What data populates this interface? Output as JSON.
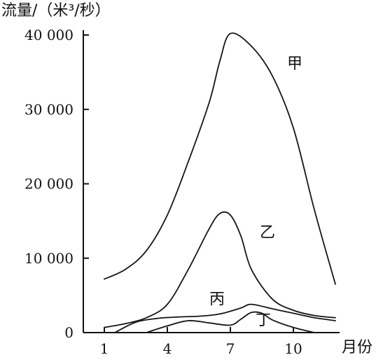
{
  "chart_data": {
    "type": "line",
    "ylabel": "流量/（米³/秒）",
    "xlabel": "月份",
    "x_ticks": [
      "1",
      "4",
      "7",
      "10"
    ],
    "x_tick_values": [
      1,
      4,
      7,
      10
    ],
    "y_ticks": [
      "0",
      "10 000",
      "20 000",
      "30 000",
      "40 000"
    ],
    "y_tick_values": [
      0,
      10000,
      20000,
      30000,
      40000
    ],
    "xlim": [
      0,
      12.2
    ],
    "ylim": [
      0,
      40000
    ],
    "grid": false,
    "legend": "none",
    "series": [
      {
        "name": "甲",
        "x": [
          1,
          2,
          3,
          4,
          5,
          6,
          6.5,
          7,
          8,
          9,
          10,
          11,
          12
        ],
        "values": [
          7200,
          8500,
          11000,
          15800,
          23000,
          31000,
          36500,
          40200,
          38500,
          34500,
          27500,
          16500,
          6500
        ]
      },
      {
        "name": "乙",
        "x": [
          1,
          2,
          3,
          4,
          5,
          6,
          6.5,
          7,
          7.5,
          8,
          9,
          10,
          11,
          12
        ],
        "values": [
          700,
          1200,
          2000,
          3800,
          8500,
          14000,
          16000,
          15800,
          13000,
          8500,
          4500,
          3000,
          2300,
          2000
        ]
      },
      {
        "name": "丙",
        "x": [
          1.5,
          2.5,
          3.5,
          4.5,
          5.5,
          6.5,
          7.5,
          8,
          9,
          10,
          11,
          12
        ],
        "values": [
          0,
          1400,
          1900,
          2100,
          2200,
          2500,
          3300,
          3800,
          3200,
          2600,
          2000,
          1600
        ]
      },
      {
        "name": "丁",
        "x": [
          3,
          4,
          5,
          6,
          7,
          7.5,
          8,
          8.5,
          9,
          10,
          11
        ],
        "values": [
          0,
          900,
          1600,
          1300,
          1000,
          1800,
          2700,
          2600,
          1700,
          700,
          0
        ]
      }
    ]
  }
}
